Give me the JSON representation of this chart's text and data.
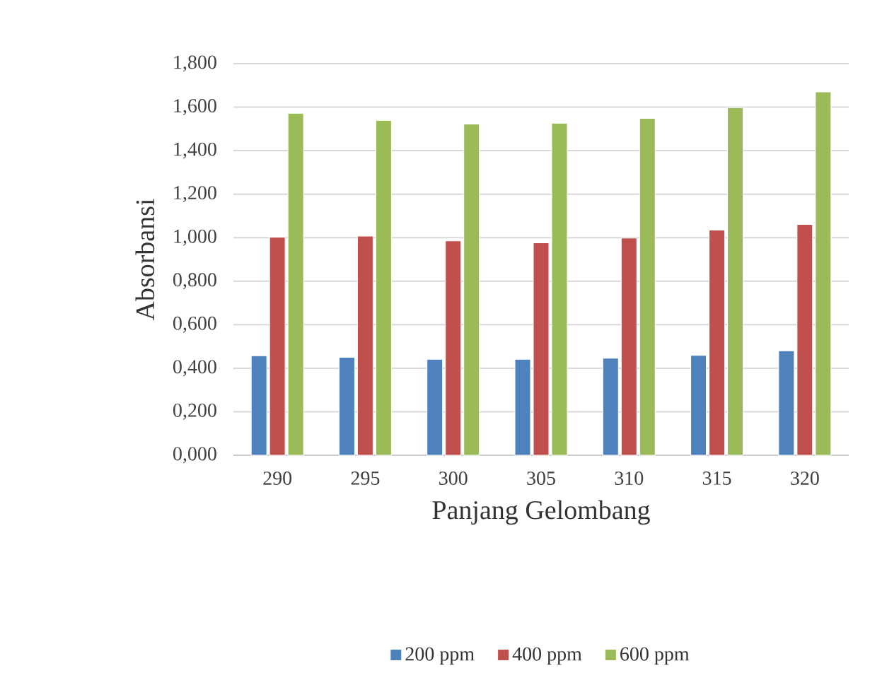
{
  "chart_data": {
    "type": "bar",
    "xlabel": "Panjang Gelombang",
    "ylabel": "Absorbansi",
    "categories": [
      "290",
      "295",
      "300",
      "305",
      "310",
      "315",
      "320"
    ],
    "series": [
      {
        "name": "200 ppm",
        "color": "#4f81bd",
        "values": [
          0.457,
          0.45,
          0.441,
          0.441,
          0.446,
          0.459,
          0.48
        ]
      },
      {
        "name": "400 ppm",
        "color": "#c0504d",
        "values": [
          1.002,
          1.007,
          0.985,
          0.976,
          0.998,
          1.035,
          1.061
        ]
      },
      {
        "name": "600 ppm",
        "color": "#9bbb59",
        "values": [
          1.572,
          1.539,
          1.522,
          1.526,
          1.548,
          1.598,
          1.67
        ]
      }
    ],
    "ylim": [
      0,
      1.8
    ],
    "yticks": [
      {
        "value": 0,
        "label": "0,000"
      },
      {
        "value": 0.2,
        "label": "0,200"
      },
      {
        "value": 0.4,
        "label": "0,400"
      },
      {
        "value": 0.6,
        "label": "0,600"
      },
      {
        "value": 0.8,
        "label": "0,800"
      },
      {
        "value": 1.0,
        "label": "1,000"
      },
      {
        "value": 1.2,
        "label": "1,200"
      },
      {
        "value": 1.4,
        "label": "1,400"
      },
      {
        "value": 1.6,
        "label": "1,600"
      },
      {
        "value": 1.8,
        "label": "1,800"
      }
    ],
    "grid": "y",
    "legend": "bottom"
  }
}
